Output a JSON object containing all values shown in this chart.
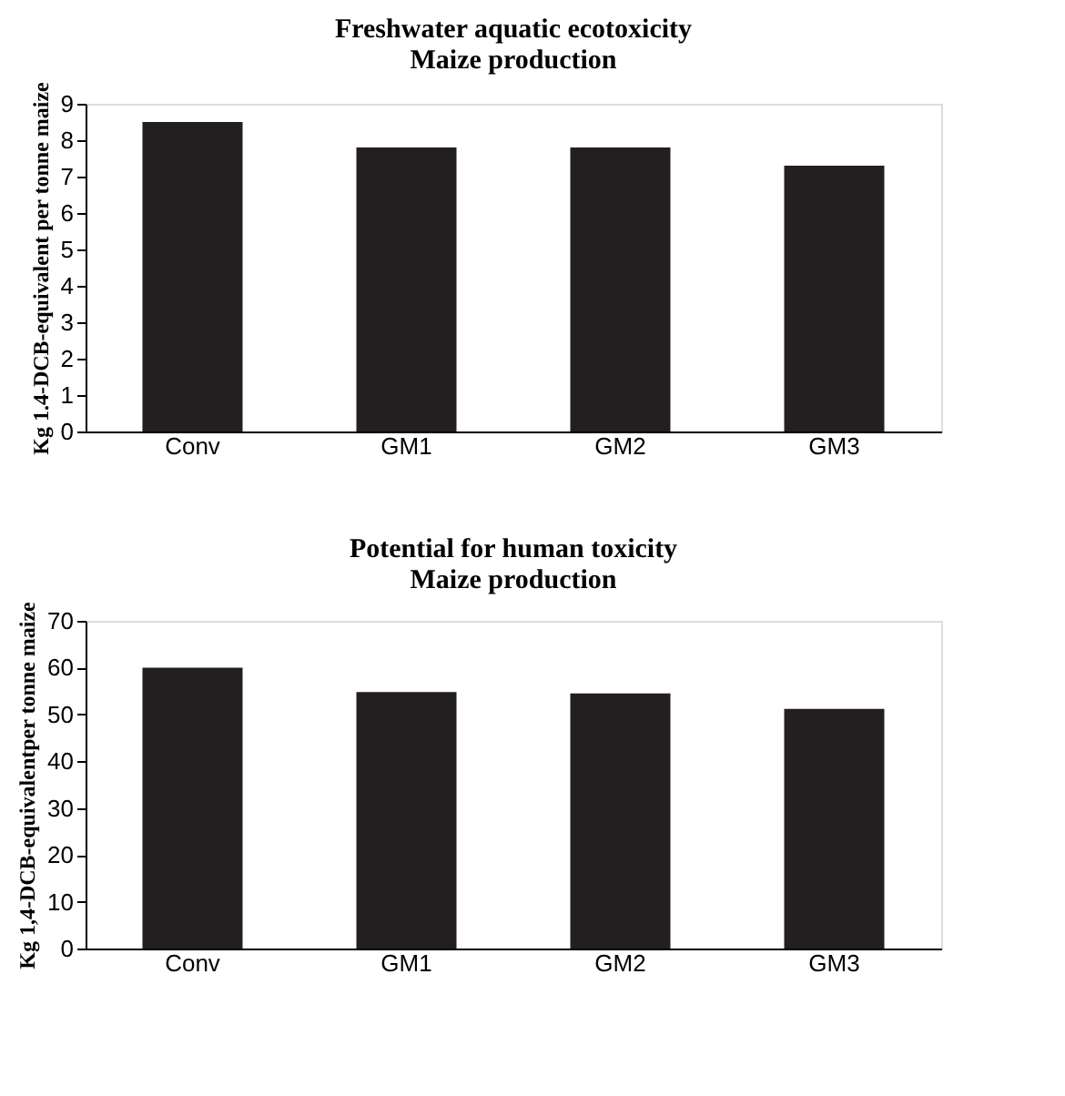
{
  "chart_data": [
    {
      "type": "bar",
      "title": [
        "Freshwater aquatic ecotoxicity",
        "Maize production"
      ],
      "ylabel": "Kg 1.4-DCB-equivalent per tonne maize",
      "categories": [
        "Conv",
        "GM1",
        "GM2",
        "GM3"
      ],
      "values": [
        8.5,
        7.8,
        7.8,
        7.3
      ],
      "color": "#231f20",
      "ylim": [
        0,
        9
      ],
      "yticks": [
        0,
        1,
        2,
        3,
        4,
        5,
        6,
        7,
        8,
        9
      ],
      "grid": false
    },
    {
      "type": "bar",
      "title": [
        "Potential for human toxicity",
        "Maize production"
      ],
      "ylabel": "Kg 1,4-DCB-equivalentper tonne maize",
      "categories": [
        "Conv",
        "GM1",
        "GM2",
        "GM3"
      ],
      "values": [
        60,
        54.8,
        54.5,
        51.2
      ],
      "color": "#231f20",
      "ylim": [
        0,
        70
      ],
      "yticks": [
        0,
        10,
        20,
        30,
        40,
        50,
        60,
        70
      ],
      "grid": false
    }
  ]
}
